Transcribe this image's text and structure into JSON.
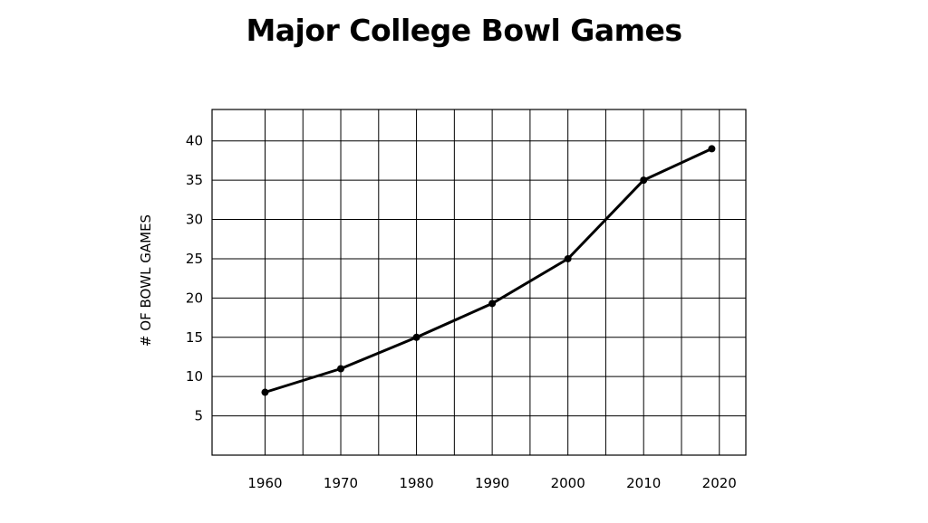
{
  "chart_data": {
    "type": "line",
    "title": "Major College Bowl Games",
    "xlabel": "",
    "ylabel": "# OF BOWL GAMES",
    "x_ticks": [
      "1960",
      "1970",
      "1980",
      "1990",
      "2000",
      "2010",
      "2020"
    ],
    "y_ticks": [
      5,
      10,
      15,
      20,
      25,
      30,
      35,
      40
    ],
    "xlim": [
      1953,
      2023.5
    ],
    "ylim": [
      0,
      44
    ],
    "grid": true,
    "series": [
      {
        "x": [
          1960,
          1970,
          1980,
          1990,
          2000,
          2010,
          2019
        ],
        "y": [
          8,
          11,
          15,
          19.3,
          25,
          35,
          39
        ]
      }
    ]
  },
  "colors": {
    "line": "#000000",
    "grid": "#000000"
  }
}
